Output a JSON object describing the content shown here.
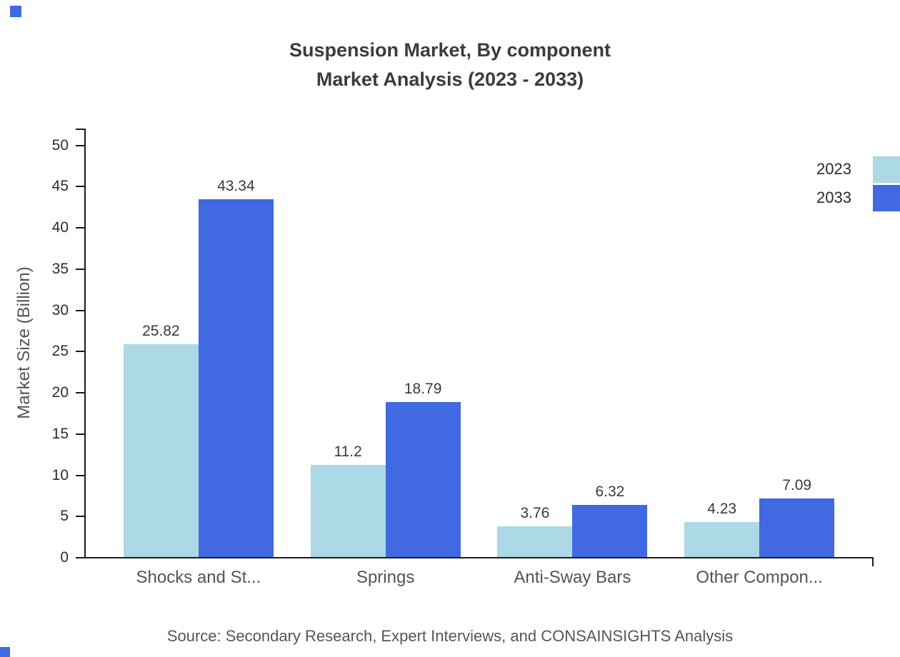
{
  "title": {
    "line1": "Suspension Market, By component",
    "line2": "Market Analysis (2023 - 2033)"
  },
  "source": "Source: Secondary Research, Expert Interviews, and CONSAINSIGHTS Analysis",
  "accent_color": "#4169E1",
  "chart_data": {
    "type": "bar",
    "title": "Suspension Market, By component Market Analysis (2023 - 2033)",
    "categories": [
      "Shocks and St...",
      "Springs",
      "Anti-Sway Bars",
      "Other Compon..."
    ],
    "series": [
      {
        "name": "2023",
        "color": "#ADD8E6",
        "values": [
          25.82,
          11.2,
          3.76,
          4.23
        ]
      },
      {
        "name": "2033",
        "color": "#4169E1",
        "values": [
          43.34,
          18.79,
          6.32,
          7.09
        ]
      }
    ],
    "xlabel": "",
    "ylabel": "Market Size (Billion)",
    "ylim": [
      0,
      50
    ],
    "ytick_step": 5,
    "grid": false,
    "legend_position": "top-right",
    "value_labels": true
  }
}
